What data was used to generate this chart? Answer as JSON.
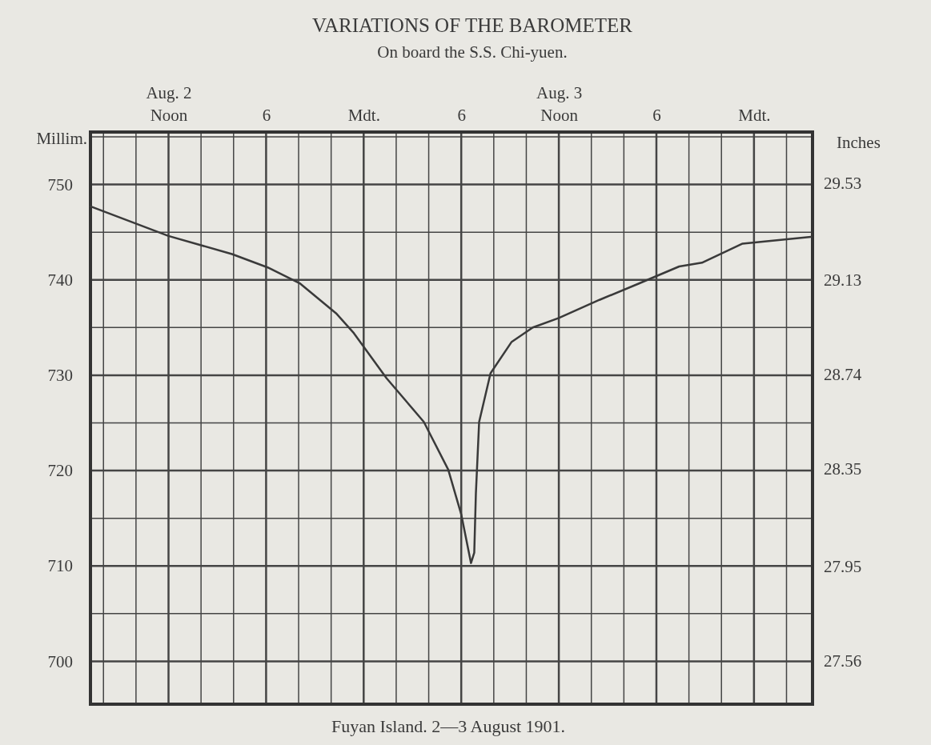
{
  "chart_data": {
    "type": "line",
    "title": "VARIATIONS OF THE BAROMETER",
    "subtitle": "On board the S.S. Chi-yuen.",
    "ylabel": "Millim.",
    "y2label": "Inches",
    "annotations": [
      "Fuyan Island. 2—3 August 1901."
    ],
    "x": [
      "1901-08-02T07:12",
      "1901-08-02T12:00",
      "1901-08-02T15:54",
      "1901-08-02T18:06",
      "1901-08-02T20:06",
      "1901-08-02T22:18",
      "1901-08-02T23:24",
      "1901-08-03T01:24",
      "1901-08-03T03:42",
      "1901-08-03T05:12",
      "1901-08-03T06:00",
      "1901-08-03T06:36",
      "1901-08-03T06:48",
      "1901-08-03T06:54",
      "1901-08-03T07:06",
      "1901-08-03T07:48",
      "1901-08-03T09:06",
      "1901-08-03T10:24",
      "1901-08-03T12:00",
      "1901-08-03T14:30",
      "1901-08-03T16:54",
      "1901-08-03T19:24",
      "1901-08-03T20:48",
      "1901-08-03T23:18",
      "1901-08-04T03:30"
    ],
    "series": [
      {
        "color": "#3a3a3a",
        "values": [
          747.7,
          744.6,
          742.7,
          741.3,
          739.6,
          736.5,
          734.4,
          729.7,
          725.1,
          720.1,
          715.4,
          710.3,
          711.4,
          717.6,
          725.1,
          730.2,
          733.5,
          735.0,
          736.0,
          737.9,
          739.6,
          741.4,
          741.8,
          743.8,
          744.5
        ]
      }
    ],
    "xlim": [
      "1901-08-02T07:12",
      "1901-08-04T03:36"
    ],
    "xticks": [
      {
        "value": "1901-08-02T08:00",
        "label": null
      },
      {
        "value": "1901-08-02T10:00",
        "label": null
      },
      {
        "value": "1901-08-02T12:00",
        "label": "Noon"
      },
      {
        "value": "1901-08-02T14:00",
        "label": null
      },
      {
        "value": "1901-08-02T16:00",
        "label": null
      },
      {
        "value": "1901-08-02T18:00",
        "label": "6"
      },
      {
        "value": "1901-08-02T20:00",
        "label": null
      },
      {
        "value": "1901-08-02T22:00",
        "label": null
      },
      {
        "value": "1901-08-03T00:00",
        "label": "Mdt."
      },
      {
        "value": "1901-08-03T02:00",
        "label": null
      },
      {
        "value": "1901-08-03T04:00",
        "label": null
      },
      {
        "value": "1901-08-03T06:00",
        "label": "6"
      },
      {
        "value": "1901-08-03T08:00",
        "label": null
      },
      {
        "value": "1901-08-03T10:00",
        "label": null
      },
      {
        "value": "1901-08-03T12:00",
        "label": "Noon"
      },
      {
        "value": "1901-08-03T14:00",
        "label": null
      },
      {
        "value": "1901-08-03T16:00",
        "label": null
      },
      {
        "value": "1901-08-03T18:00",
        "label": "6"
      },
      {
        "value": "1901-08-03T20:00",
        "label": null
      },
      {
        "value": "1901-08-03T22:00",
        "label": null
      },
      {
        "value": "1901-08-04T00:00",
        "label": "Mdt."
      },
      {
        "value": "1901-08-04T02:00",
        "label": null
      }
    ],
    "x2lim": [
      "1901-08-02T07:12",
      "1901-08-04T03:36"
    ],
    "x2ticks": [
      {
        "value": "1901-08-02T12:00",
        "label": "Aug. 2"
      },
      {
        "value": "1901-08-03T12:00",
        "label": "Aug. 3"
      }
    ],
    "ylim": [
      695.5,
      755.5
    ],
    "yticks": [
      700,
      {
        "value": 705,
        "label": null
      },
      710,
      {
        "value": 715,
        "label": null
      },
      720,
      {
        "value": 725,
        "label": null
      },
      730,
      {
        "value": 735,
        "label": null
      },
      740,
      {
        "value": 745,
        "label": null
      },
      750,
      {
        "value": 755,
        "label": null
      }
    ],
    "y2lim": [
      27.38,
      29.74
    ],
    "y2ticks": [
      27.56,
      27.95,
      28.35,
      28.74,
      29.13,
      29.53
    ],
    "grid": true,
    "marker": "none",
    "line_style": "solid"
  }
}
